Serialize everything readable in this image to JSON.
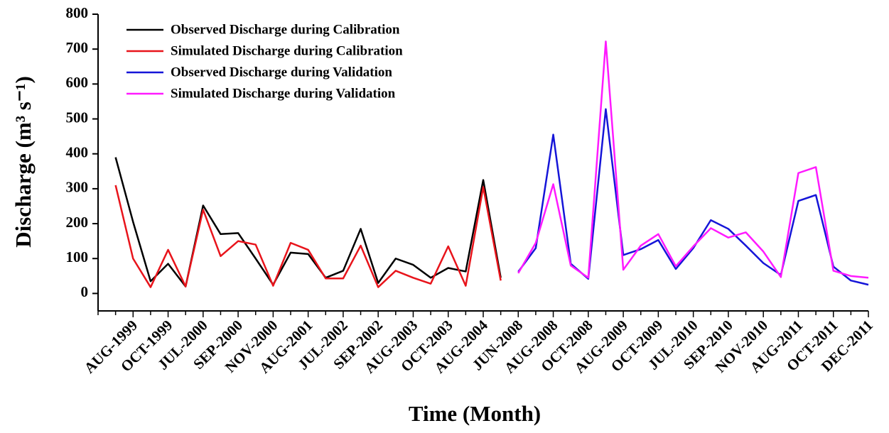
{
  "chart_data": {
    "type": "line",
    "x_label": "Time (Month)",
    "y_label": "Discharge (m³ s⁻¹)",
    "categories": [
      null,
      "AUG-1999",
      null,
      "OCT-1999",
      null,
      "JUL-2000",
      null,
      "SEP-2000",
      null,
      "NOV-2000",
      null,
      "AUG-2001",
      null,
      "JUL-2002",
      null,
      "SEP-2002",
      null,
      "AUG-2003",
      null,
      "OCT-2003",
      null,
      "AUG-2004",
      null,
      "JUN-2008",
      null,
      "AUG-2008",
      null,
      "OCT-2008",
      null,
      "AUG-2009",
      null,
      "OCT-2009",
      null,
      "JUL-2010",
      null,
      "SEP-2010",
      null,
      "NOV-2010",
      null,
      "AUG-2011",
      null,
      "OCT-2011",
      null,
      "DEC-2011"
    ],
    "series": [
      {
        "name": "Observed Discharge during Calibration",
        "color": "#000000",
        "values": [
          390,
          205,
          35,
          85,
          20,
          252,
          170,
          173,
          100,
          25,
          117,
          113,
          45,
          65,
          185,
          30,
          100,
          82,
          45,
          73,
          63,
          325,
          45,
          null,
          null,
          null,
          null,
          null,
          null,
          null,
          null,
          null,
          null,
          null,
          null,
          null,
          null,
          null,
          null,
          null,
          null,
          null,
          null,
          null
        ]
      },
      {
        "name": "Simulated Discharge during Calibration",
        "color": "#e8141b",
        "values": [
          310,
          100,
          18,
          125,
          20,
          240,
          107,
          150,
          140,
          22,
          145,
          125,
          43,
          43,
          137,
          18,
          65,
          45,
          28,
          135,
          22,
          305,
          37,
          null,
          null,
          null,
          null,
          null,
          null,
          null,
          null,
          null,
          null,
          null,
          null,
          null,
          null,
          null,
          null,
          null,
          null,
          null,
          null,
          null
        ]
      },
      {
        "name": "Observed Discharge during Validation",
        "color": "#1515d8",
        "values": [
          null,
          null,
          null,
          null,
          null,
          null,
          null,
          null,
          null,
          null,
          null,
          null,
          null,
          null,
          null,
          null,
          null,
          null,
          null,
          null,
          null,
          null,
          null,
          62,
          130,
          455,
          85,
          42,
          528,
          110,
          127,
          153,
          70,
          130,
          210,
          185,
          137,
          87,
          53,
          265,
          282,
          77,
          37,
          25
        ]
      },
      {
        "name": "Simulated Discharge during Validation",
        "color": "#ff1aff",
        "values": [
          null,
          null,
          null,
          null,
          null,
          null,
          null,
          null,
          null,
          null,
          null,
          null,
          null,
          null,
          null,
          null,
          null,
          null,
          null,
          null,
          null,
          null,
          null,
          58,
          145,
          313,
          80,
          45,
          722,
          68,
          137,
          170,
          78,
          135,
          187,
          160,
          175,
          120,
          47,
          345,
          362,
          65,
          50,
          45
        ]
      }
    ],
    "ylim": [
      -50,
      800
    ],
    "yticks": [
      0,
      100,
      200,
      300,
      400,
      500,
      600,
      700,
      800
    ],
    "legend": "upper left",
    "grid": false
  }
}
